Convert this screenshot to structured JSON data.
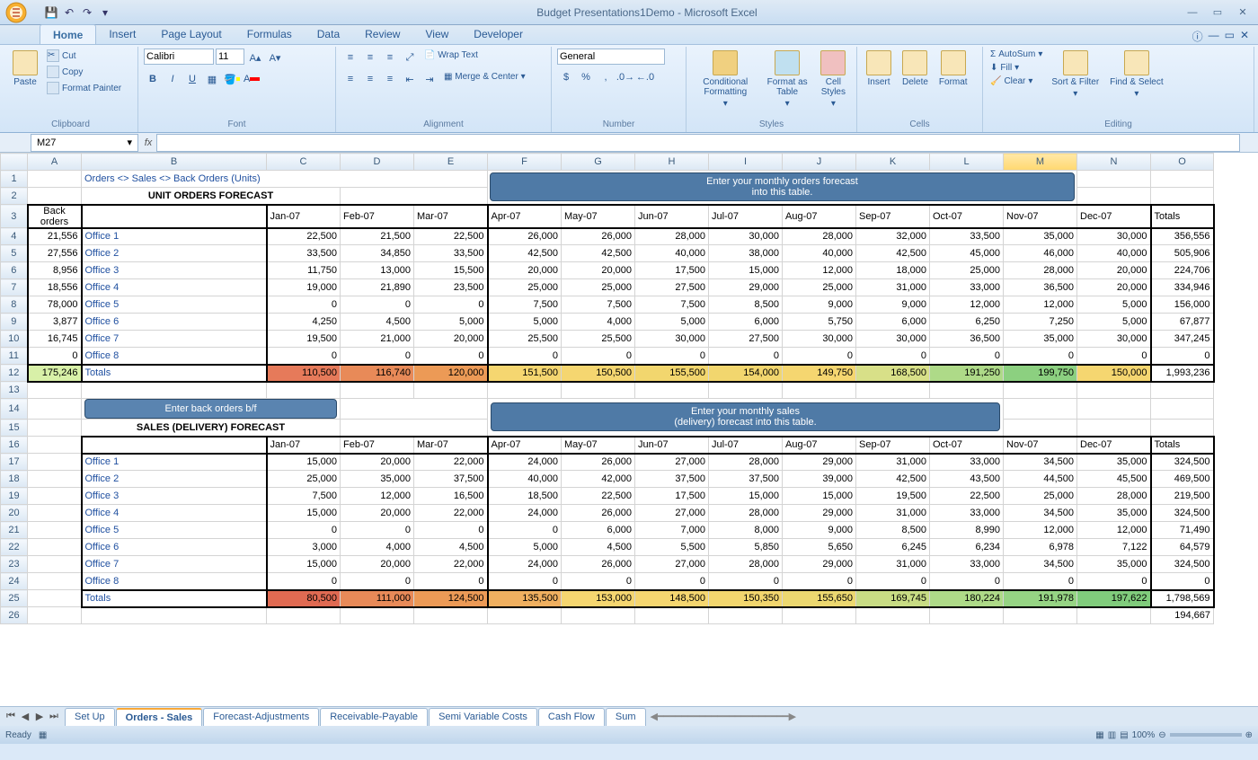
{
  "app": {
    "title": "Budget Presentations1Demo - Microsoft Excel"
  },
  "tabs": [
    "Home",
    "Insert",
    "Page Layout",
    "Formulas",
    "Data",
    "Review",
    "View",
    "Developer"
  ],
  "active_tab": "Home",
  "ribbon": {
    "clipboard": {
      "label": "Clipboard",
      "paste": "Paste",
      "cut": "Cut",
      "copy": "Copy",
      "painter": "Format Painter"
    },
    "font": {
      "label": "Font",
      "name": "Calibri",
      "size": "11"
    },
    "alignment": {
      "label": "Alignment",
      "wrap": "Wrap Text",
      "merge": "Merge & Center"
    },
    "number": {
      "label": "Number",
      "format": "General"
    },
    "styles": {
      "label": "Styles",
      "cond": "Conditional Formatting",
      "table": "Format as Table",
      "cell": "Cell Styles"
    },
    "cells": {
      "label": "Cells",
      "insert": "Insert",
      "delete": "Delete",
      "format": "Format"
    },
    "editing": {
      "label": "Editing",
      "autosum": "AutoSum",
      "fill": "Fill",
      "clear": "Clear",
      "sort": "Sort & Filter",
      "find": "Find & Select"
    }
  },
  "namebox": "M27",
  "columns": [
    "A",
    "B",
    "C",
    "D",
    "E",
    "F",
    "G",
    "H",
    "I",
    "J",
    "K",
    "L",
    "M",
    "N",
    "O"
  ],
  "months": [
    "Jan-07",
    "Feb-07",
    "Mar-07",
    "Apr-07",
    "May-07",
    "Jun-07",
    "Jul-07",
    "Aug-07",
    "Sep-07",
    "Oct-07",
    "Nov-07",
    "Dec-07"
  ],
  "sheet": {
    "breadcrumb": "Orders <> Sales <> Back Orders (Units)",
    "banner1a": "Enter your monthly orders forecast",
    "banner1b": "into this table.",
    "section1": "UNIT ORDERS FORECAST",
    "back_orders_hdr": "Back orders",
    "totals_hdr": "Totals",
    "back_orders": [
      "21,556",
      "27,556",
      "8,956",
      "18,556",
      "78,000",
      "3,877",
      "16,745",
      "0"
    ],
    "offices": [
      "Office 1",
      "Office 2",
      "Office 3",
      "Office 4",
      "Office 5",
      "Office 6",
      "Office 7",
      "Office 8"
    ],
    "orders": [
      [
        "22,500",
        "21,500",
        "22,500",
        "26,000",
        "26,000",
        "28,000",
        "30,000",
        "28,000",
        "32,000",
        "33,500",
        "35,000",
        "30,000",
        "356,556"
      ],
      [
        "33,500",
        "34,850",
        "33,500",
        "42,500",
        "42,500",
        "40,000",
        "38,000",
        "40,000",
        "42,500",
        "45,000",
        "46,000",
        "40,000",
        "505,906"
      ],
      [
        "11,750",
        "13,000",
        "15,500",
        "20,000",
        "20,000",
        "17,500",
        "15,000",
        "12,000",
        "18,000",
        "25,000",
        "28,000",
        "20,000",
        "224,706"
      ],
      [
        "19,000",
        "21,890",
        "23,500",
        "25,000",
        "25,000",
        "27,500",
        "29,000",
        "25,000",
        "31,000",
        "33,000",
        "36,500",
        "20,000",
        "334,946"
      ],
      [
        "0",
        "0",
        "0",
        "7,500",
        "7,500",
        "7,500",
        "8,500",
        "9,000",
        "9,000",
        "12,000",
        "12,000",
        "5,000",
        "156,000"
      ],
      [
        "4,250",
        "4,500",
        "5,000",
        "5,000",
        "4,000",
        "5,000",
        "6,000",
        "5,750",
        "6,000",
        "6,250",
        "7,250",
        "5,000",
        "67,877"
      ],
      [
        "19,500",
        "21,000",
        "20,000",
        "25,500",
        "25,500",
        "30,000",
        "27,500",
        "30,000",
        "30,000",
        "36,500",
        "35,000",
        "30,000",
        "347,245"
      ],
      [
        "0",
        "0",
        "0",
        "0",
        "0",
        "0",
        "0",
        "0",
        "0",
        "0",
        "0",
        "0",
        "0"
      ]
    ],
    "orders_total_back": "175,246",
    "orders_totals": [
      "110,500",
      "116,740",
      "120,000",
      "151,500",
      "150,500",
      "155,500",
      "154,000",
      "149,750",
      "168,500",
      "191,250",
      "199,750",
      "150,000",
      "1,993,236"
    ],
    "orders_colors": [
      "#e67a5a",
      "#e88a58",
      "#ec9a56",
      "#f5d670",
      "#f5d670",
      "#f2d66e",
      "#f2d66e",
      "#f5d670",
      "#d8e088",
      "#aeda88",
      "#8cd080",
      "#f5d670"
    ],
    "back_btn": "Enter back orders b/f",
    "banner2a": "Enter your monthly sales",
    "banner2b": "(delivery) forecast into this table.",
    "section2": "SALES (DELIVERY) FORECAST",
    "sales": [
      [
        "15,000",
        "20,000",
        "22,000",
        "24,000",
        "26,000",
        "27,000",
        "28,000",
        "29,000",
        "31,000",
        "33,000",
        "34,500",
        "35,000",
        "324,500"
      ],
      [
        "25,000",
        "35,000",
        "37,500",
        "40,000",
        "42,000",
        "37,500",
        "37,500",
        "39,000",
        "42,500",
        "43,500",
        "44,500",
        "45,500",
        "469,500"
      ],
      [
        "7,500",
        "12,000",
        "16,500",
        "18,500",
        "22,500",
        "17,500",
        "15,000",
        "15,000",
        "19,500",
        "22,500",
        "25,000",
        "28,000",
        "219,500"
      ],
      [
        "15,000",
        "20,000",
        "22,000",
        "24,000",
        "26,000",
        "27,000",
        "28,000",
        "29,000",
        "31,000",
        "33,000",
        "34,500",
        "35,000",
        "324,500"
      ],
      [
        "0",
        "0",
        "0",
        "0",
        "6,000",
        "7,000",
        "8,000",
        "9,000",
        "8,500",
        "8,990",
        "12,000",
        "12,000",
        "71,490"
      ],
      [
        "3,000",
        "4,000",
        "4,500",
        "5,000",
        "4,500",
        "5,500",
        "5,850",
        "5,650",
        "6,245",
        "6,234",
        "6,978",
        "7,122",
        "64,579"
      ],
      [
        "15,000",
        "20,000",
        "22,000",
        "24,000",
        "26,000",
        "27,000",
        "28,000",
        "29,000",
        "31,000",
        "33,000",
        "34,500",
        "35,000",
        "324,500"
      ],
      [
        "0",
        "0",
        "0",
        "0",
        "0",
        "0",
        "0",
        "0",
        "0",
        "0",
        "0",
        "0",
        "0"
      ]
    ],
    "sales_totals": [
      "80,500",
      "111,000",
      "124,500",
      "135,500",
      "153,000",
      "148,500",
      "150,350",
      "155,650",
      "169,745",
      "180,224",
      "191,978",
      "197,622",
      "1,798,569"
    ],
    "sales_colors": [
      "#e06a52",
      "#e88a58",
      "#ec9a56",
      "#f0b060",
      "#f5d670",
      "#f5d670",
      "#f2d66e",
      "#ecd870",
      "#c8dc84",
      "#aeda88",
      "#96d484",
      "#80cc7c"
    ],
    "row26_last": "194,667"
  },
  "sheet_tabs": [
    "Set Up",
    "Orders - Sales",
    "Forecast-Adjustments",
    "Receivable-Payable",
    "Semi Variable Costs",
    "Cash Flow",
    "Sum"
  ],
  "active_sheet": 1,
  "status": {
    "ready": "Ready",
    "zoom": "100%"
  }
}
